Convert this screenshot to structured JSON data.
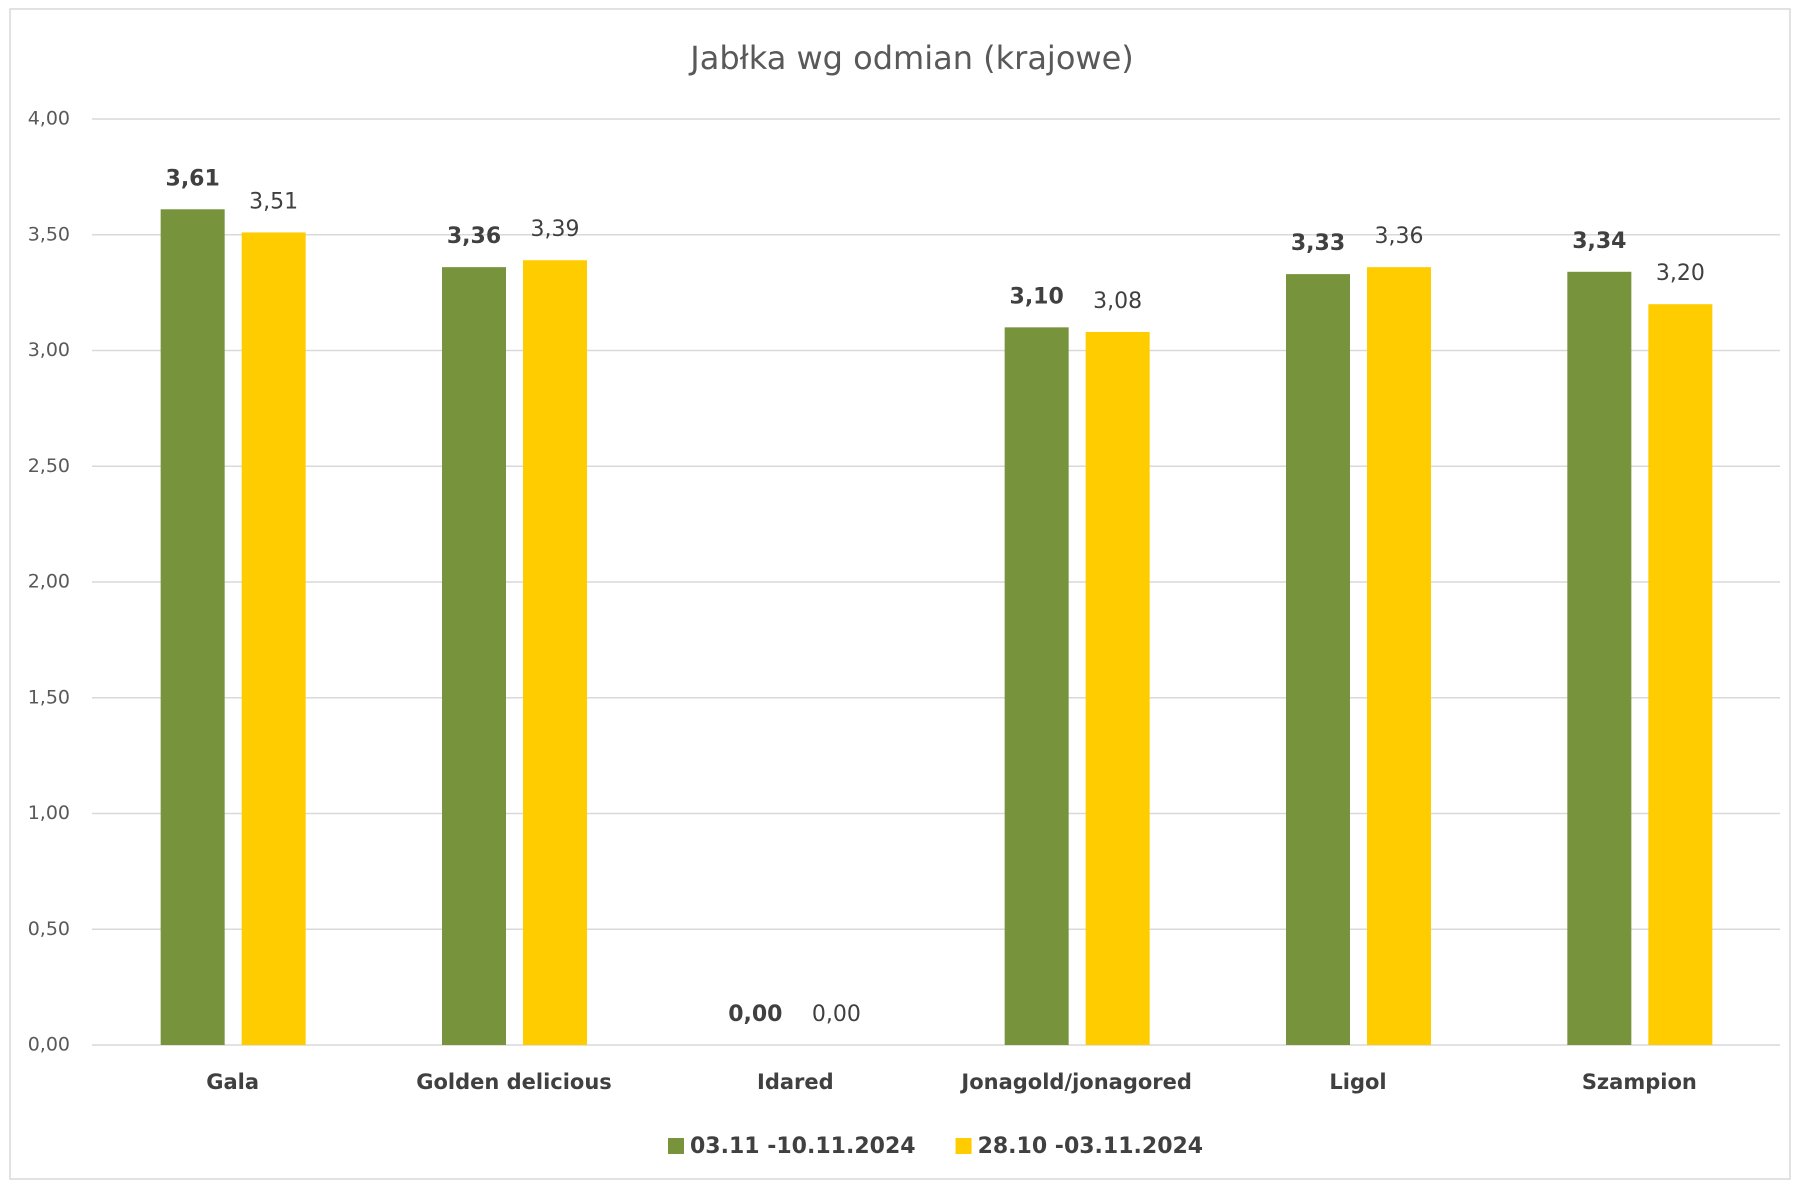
{
  "chart_data": {
    "type": "bar",
    "title": "Jabłka wg odmian (krajowe)",
    "categories": [
      "Gala",
      "Golden delicious",
      "Idared",
      "Jonagold/jonagored",
      "Ligol",
      "Szampion"
    ],
    "series": [
      {
        "name": "03.11 -10.11.2024",
        "color": "#77933c",
        "values": [
          3.61,
          3.36,
          0,
          3.1,
          3.33,
          3.34
        ],
        "value_labels": [
          "3,61",
          "3,36",
          "0,00",
          "3,10",
          "3,33",
          "3,34"
        ]
      },
      {
        "name": "28.10 -03.11.2024",
        "color": "#ffcc00",
        "values": [
          3.51,
          3.39,
          0,
          3.08,
          3.36,
          3.2
        ],
        "value_labels": [
          "3,51",
          "3,39",
          "0,00",
          "3,08",
          "3,36",
          "3,20"
        ]
      }
    ],
    "ylim": [
      0,
      4
    ],
    "yticks": [
      {
        "value": 0,
        "label": "0,00"
      },
      {
        "value": 0.5,
        "label": "0,50"
      },
      {
        "value": 1,
        "label": "1,00"
      },
      {
        "value": 1.5,
        "label": "1,50"
      },
      {
        "value": 2,
        "label": "2,00"
      },
      {
        "value": 2.5,
        "label": "2,50"
      },
      {
        "value": 3,
        "label": "3,00"
      },
      {
        "value": 3.5,
        "label": "3,50"
      },
      {
        "value": 4,
        "label": "4,00"
      }
    ],
    "grid": true,
    "legend": "bottom"
  }
}
